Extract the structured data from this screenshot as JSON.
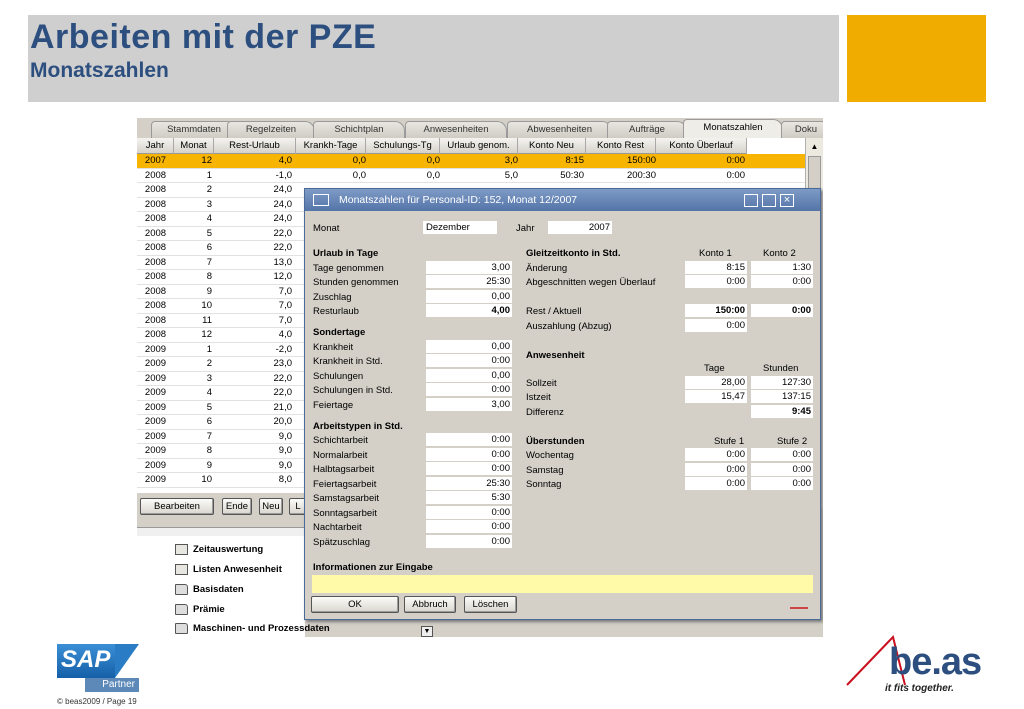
{
  "slide": {
    "title": "Arbeiten mit der PZE",
    "subtitle": "Monatszahlen",
    "footer": "© beas2009 / Page 19",
    "sap_logo": "SAP",
    "sap_partner": "Partner",
    "beas_logo": "be.as",
    "beas_tagline": "it fits together."
  },
  "tabs": [
    "Stammdaten",
    "Regelzeiten",
    "Schichtplan",
    "Anwesenheiten",
    "Abwesenheiten",
    "Aufträge",
    "Monatszahlen",
    "Doku"
  ],
  "grid": {
    "headers": [
      "Jahr",
      "Monat",
      "Rest-Urlaub",
      "Krankh-Tage",
      "Schulungs-Tg",
      "Urlaub genom.",
      "Konto Neu",
      "Konto Rest",
      "Konto Überlauf"
    ],
    "rows": [
      [
        "2007",
        "12",
        "4,0",
        "0,0",
        "0,0",
        "3,0",
        "8:15",
        "150:00",
        "0:00"
      ],
      [
        "2008",
        "1",
        "-1,0",
        "0,0",
        "0,0",
        "5,0",
        "50:30",
        "200:30",
        "0:00"
      ],
      [
        "2008",
        "2",
        "24,0",
        "",
        "",
        "",
        "",
        "",
        ""
      ],
      [
        "2008",
        "3",
        "24,0",
        "",
        "",
        "",
        "",
        "",
        ""
      ],
      [
        "2008",
        "4",
        "24,0",
        "",
        "",
        "",
        "",
        "",
        ""
      ],
      [
        "2008",
        "5",
        "22,0",
        "",
        "",
        "",
        "",
        "",
        ""
      ],
      [
        "2008",
        "6",
        "22,0",
        "",
        "",
        "",
        "",
        "",
        ""
      ],
      [
        "2008",
        "7",
        "13,0",
        "",
        "",
        "",
        "",
        "",
        ""
      ],
      [
        "2008",
        "8",
        "12,0",
        "",
        "",
        "",
        "",
        "",
        ""
      ],
      [
        "2008",
        "9",
        "7,0",
        "",
        "",
        "",
        "",
        "",
        ""
      ],
      [
        "2008",
        "10",
        "7,0",
        "",
        "",
        "",
        "",
        "",
        ""
      ],
      [
        "2008",
        "11",
        "7,0",
        "",
        "",
        "",
        "",
        "",
        ""
      ],
      [
        "2008",
        "12",
        "4,0",
        "",
        "",
        "",
        "",
        "",
        ""
      ],
      [
        "2009",
        "1",
        "-2,0",
        "",
        "",
        "",
        "",
        "",
        ""
      ],
      [
        "2009",
        "2",
        "23,0",
        "",
        "",
        "",
        "",
        "",
        ""
      ],
      [
        "2009",
        "3",
        "22,0",
        "",
        "",
        "",
        "",
        "",
        ""
      ],
      [
        "2009",
        "4",
        "22,0",
        "",
        "",
        "",
        "",
        "",
        ""
      ],
      [
        "2009",
        "5",
        "21,0",
        "",
        "",
        "",
        "",
        "",
        ""
      ],
      [
        "2009",
        "6",
        "20,0",
        "",
        "",
        "",
        "",
        "",
        ""
      ],
      [
        "2009",
        "7",
        "9,0",
        "",
        "",
        "",
        "",
        "",
        ""
      ],
      [
        "2009",
        "8",
        "9,0",
        "",
        "",
        "",
        "",
        "",
        ""
      ],
      [
        "2009",
        "9",
        "9,0",
        "",
        "",
        "",
        "",
        "",
        ""
      ],
      [
        "2009",
        "10",
        "8,0",
        "",
        "",
        "",
        "",
        "",
        ""
      ]
    ],
    "selected_color": "#f7b400"
  },
  "bottom_buttons": {
    "bearbeiten": "Bearbeiten",
    "ende": "Ende",
    "neu": "Neu",
    "l": "L"
  },
  "tree": [
    "Zeitauswertung",
    "Listen Anwesenheit",
    "Basisdaten",
    "Prämie",
    "Maschinen- und Prozessdaten"
  ],
  "dialog": {
    "title": "Monatszahlen für Personal-ID: 152, Monat 12/2007",
    "monat_label": "Monat",
    "monat_value": "Dezember",
    "jahr_label": "Jahr",
    "jahr_value": "2007",
    "urlaub": {
      "header": "Urlaub in Tage",
      "tage_genommen": "Tage genommen",
      "tage_genommen_v": "3,00",
      "stunden_genommen": "Stunden genommen",
      "stunden_genommen_v": "25:30",
      "zuschlag": "Zuschlag",
      "zuschlag_v": "0,00",
      "resturlaub": "Resturlaub",
      "resturlaub_v": "4,00"
    },
    "sondertage": {
      "header": "Sondertage",
      "krankheit": "Krankheit",
      "krankheit_v": "0,00",
      "krankheit_std": "Krankheit in Std.",
      "krankheit_std_v": "0:00",
      "schulungen": "Schulungen",
      "schulungen_v": "0,00",
      "schulungen_std": "Schulungen in Std.",
      "schulungen_std_v": "0:00",
      "feiertage": "Feiertage",
      "feiertage_v": "3,00"
    },
    "arbeitstypen": {
      "header": "Arbeitstypen in Std.",
      "schichtarbeit": "Schichtarbeit",
      "schichtarbeit_v": "0:00",
      "normalarbeit": "Normalarbeit",
      "normalarbeit_v": "0:00",
      "halbtagsarbeit": "Halbtagsarbeit",
      "halbtagsarbeit_v": "0:00",
      "feiertagsarbeit": "Feiertagsarbeit",
      "feiertagsarbeit_v": "25:30",
      "samstagsarbeit": "Samstagsarbeit",
      "samstagsarbeit_v": "5:30",
      "sonntagsarbeit": "Sonntagsarbeit",
      "sonntagsarbeit_v": "0:00",
      "nachtarbeit": "Nachtarbeit",
      "nachtarbeit_v": "0:00",
      "spaetzuschlag": "Spätzuschlag",
      "spaetzuschlag_v": "0:00"
    },
    "gleitzeit": {
      "header": "Gleitzeitkonto in Std.",
      "konto1": "Konto 1",
      "konto2": "Konto 2",
      "aenderung": "Änderung",
      "aenderung_1": "8:15",
      "aenderung_2": "1:30",
      "abgeschnitten": "Abgeschnitten wegen Überlauf",
      "abgeschnitten_1": "0:00",
      "abgeschnitten_2": "0:00",
      "rest": "Rest / Aktuell",
      "rest_1": "150:00",
      "rest_2": "0:00",
      "auszahlung": "Auszahlung (Abzug)",
      "auszahlung_1": "0:00"
    },
    "anwesenheit": {
      "header": "Anwesenheit",
      "tage": "Tage",
      "stunden": "Stunden",
      "sollzeit": "Sollzeit",
      "sollzeit_t": "28,00",
      "sollzeit_s": "127:30",
      "istzeit": "Istzeit",
      "istzeit_t": "15,47",
      "istzeit_s": "137:15",
      "differenz": "Differenz",
      "differenz_s": "9:45"
    },
    "ueberstunden": {
      "header": "Überstunden",
      "stufe1": "Stufe 1",
      "stufe2": "Stufe 2",
      "wochentag": "Wochentag",
      "wochentag_1": "0:00",
      "wochentag_2": "0:00",
      "samstag": "Samstag",
      "samstag_1": "0:00",
      "samstag_2": "0:00",
      "sonntag": "Sonntag",
      "sonntag_1": "0:00",
      "sonntag_2": "0:00"
    },
    "info_header": "Informationen zur Eingabe",
    "ok": "OK",
    "abbruch": "Abbruch",
    "loeschen": "Löschen"
  }
}
